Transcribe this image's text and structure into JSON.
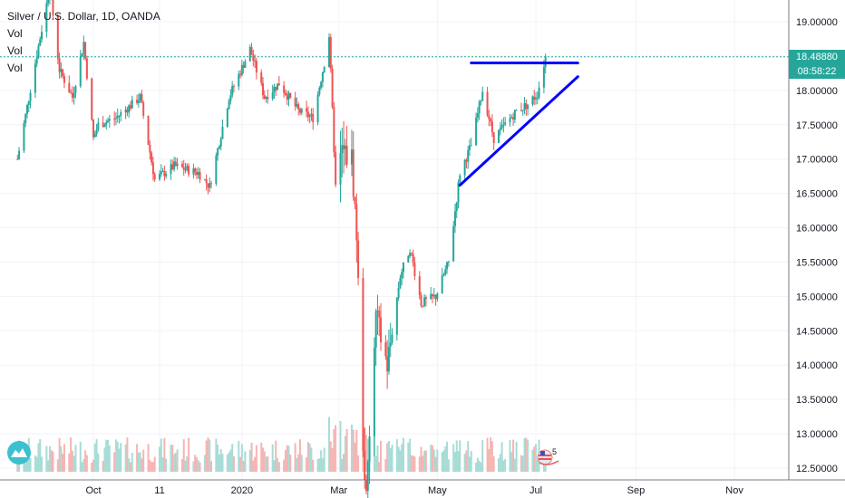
{
  "chart_data": {
    "type": "candlestick",
    "title": "Silver / U.S. Dollar, 1D, OANDA",
    "indicators": [
      "Vol",
      "Vol",
      "Vol"
    ],
    "y_ticks": [
      "19.00000",
      "18.50000",
      "18.00000",
      "17.50000",
      "17.00000",
      "16.50000",
      "16.00000",
      "15.50000",
      "15.00000",
      "14.50000",
      "14.00000",
      "13.50000",
      "13.00000",
      "12.50000"
    ],
    "ylim": [
      12.5,
      19.3
    ],
    "x_ticks": [
      "Oct",
      "11",
      "2020",
      "Mar",
      "May",
      "Jul",
      "Sep",
      "Nov"
    ],
    "current_price": "18.48880",
    "countdown": "08:58:22",
    "event_count": "5",
    "colors": {
      "up": "#26a69a",
      "down": "#ef5350",
      "trend": "#0000ff",
      "last": "#26a69a"
    },
    "anchors": [
      [
        "2019-08-15",
        17.0
      ],
      [
        "2019-08-26",
        18.4
      ],
      [
        "2019-09-04",
        19.5
      ],
      [
        "2019-09-10",
        18.3
      ],
      [
        "2019-09-18",
        17.9
      ],
      [
        "2019-09-25",
        18.7
      ],
      [
        "2019-10-01",
        17.3
      ],
      [
        "2019-10-04",
        17.5
      ],
      [
        "2019-10-15",
        17.6
      ],
      [
        "2019-10-30",
        17.9
      ],
      [
        "2019-11-08",
        16.7
      ],
      [
        "2019-11-20",
        16.9
      ],
      [
        "2019-12-05",
        16.8
      ],
      [
        "2019-12-12",
        16.6
      ],
      [
        "2019-12-24",
        17.9
      ],
      [
        "2020-01-06",
        18.6
      ],
      [
        "2020-01-15",
        17.9
      ],
      [
        "2020-01-24",
        18.1
      ],
      [
        "2020-02-05",
        17.7
      ],
      [
        "2020-02-14",
        17.6
      ],
      [
        "2020-02-21",
        18.4
      ],
      [
        "2020-02-24",
        18.8
      ],
      [
        "2020-02-28",
        16.6
      ],
      [
        "2020-03-03",
        17.1
      ],
      [
        "2020-03-09",
        17.0
      ],
      [
        "2020-03-12",
        15.9
      ],
      [
        "2020-03-16",
        12.9
      ],
      [
        "2020-03-18",
        12.0
      ],
      [
        "2020-03-24",
        14.7
      ],
      [
        "2020-03-31",
        14.0
      ],
      [
        "2020-04-08",
        15.3
      ],
      [
        "2020-04-14",
        15.7
      ],
      [
        "2020-04-21",
        14.9
      ],
      [
        "2020-04-30",
        15.0
      ],
      [
        "2020-05-08",
        15.5
      ],
      [
        "2020-05-15",
        16.8
      ],
      [
        "2020-05-22",
        17.2
      ],
      [
        "2020-05-29",
        18.0
      ],
      [
        "2020-06-05",
        17.3
      ],
      [
        "2020-06-12",
        17.5
      ],
      [
        "2020-06-19",
        17.7
      ],
      [
        "2020-06-26",
        17.8
      ],
      [
        "2020-07-02",
        17.95
      ],
      [
        "2020-07-07",
        18.49
      ]
    ],
    "x_tick_dates": [
      "2019-10-01",
      "2019-11-11",
      "2020-01-01",
      "2020-03-01",
      "2020-05-01",
      "2020-07-01",
      "2020-09-01",
      "2020-11-01"
    ],
    "trend_lines": [
      {
        "from": [
          "2020-05-22",
          18.4
        ],
        "to": [
          "2020-07-27",
          18.4
        ]
      },
      {
        "from": [
          "2020-05-15",
          16.62
        ],
        "to": [
          "2020-07-27",
          18.2
        ]
      }
    ]
  }
}
